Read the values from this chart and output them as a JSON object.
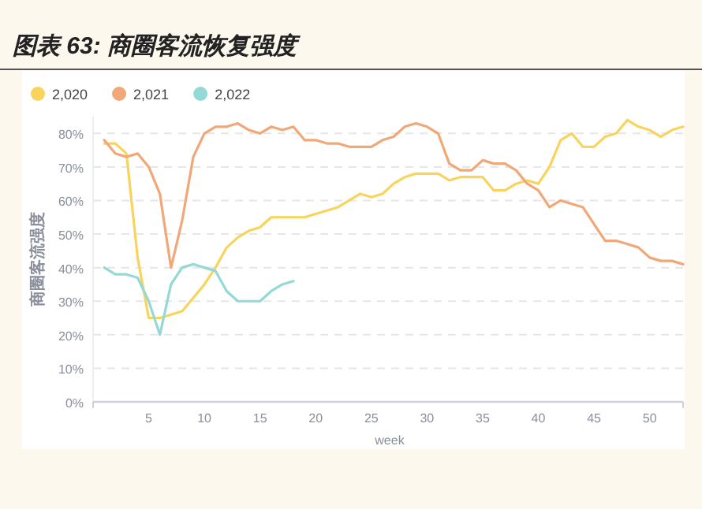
{
  "chart_data": {
    "type": "line",
    "title": "图表 63:  商圈客流恢复强度",
    "xlabel": "week",
    "ylabel": "商圈客流强度",
    "legend": "top left",
    "grid": "y",
    "marker": "none",
    "line_style": "solid",
    "xlim": [
      0,
      53
    ],
    "xticks": [
      5,
      10,
      15,
      20,
      25,
      30,
      35,
      40,
      45,
      50
    ],
    "ylim": [
      0,
      85
    ],
    "yticks": [
      {
        "value": 0,
        "label": "0%"
      },
      {
        "value": 10,
        "label": "10%"
      },
      {
        "value": 20,
        "label": "20%"
      },
      {
        "value": 30,
        "label": "30%"
      },
      {
        "value": 40,
        "label": "40%"
      },
      {
        "value": 50,
        "label": "50%"
      },
      {
        "value": 60,
        "label": "60%"
      },
      {
        "value": 70,
        "label": "70%"
      },
      {
        "value": 80,
        "label": "80%"
      }
    ],
    "series": [
      {
        "name": "2,020",
        "color": "#f9d45c",
        "x": [
          1,
          2,
          3,
          4,
          5,
          6,
          7,
          8,
          9,
          10,
          11,
          12,
          13,
          14,
          15,
          16,
          17,
          18,
          19,
          20,
          21,
          22,
          23,
          24,
          25,
          26,
          27,
          28,
          29,
          30,
          31,
          32,
          33,
          34,
          35,
          36,
          37,
          38,
          39,
          40,
          41,
          42,
          43,
          44,
          45,
          46,
          47,
          48,
          49,
          50,
          51,
          52,
          53
        ],
        "values": [
          77,
          77,
          74,
          43,
          25,
          25,
          26,
          27,
          31,
          35,
          40,
          46,
          49,
          51,
          52,
          55,
          55,
          55,
          55,
          56,
          57,
          58,
          60,
          62,
          61,
          62,
          65,
          67,
          68,
          68,
          68,
          66,
          67,
          67,
          67,
          63,
          63,
          65,
          66,
          65,
          70,
          78,
          80,
          76,
          76,
          79,
          80,
          84,
          82,
          81,
          79,
          81,
          82
        ]
      },
      {
        "name": "2,021",
        "color": "#f0a878",
        "x": [
          1,
          2,
          3,
          4,
          5,
          6,
          7,
          8,
          9,
          10,
          11,
          12,
          13,
          14,
          15,
          16,
          17,
          18,
          19,
          20,
          21,
          22,
          23,
          24,
          25,
          26,
          27,
          28,
          29,
          30,
          31,
          32,
          33,
          34,
          35,
          36,
          37,
          38,
          39,
          40,
          41,
          42,
          43,
          44,
          45,
          46,
          47,
          48,
          49,
          50,
          51,
          52,
          53
        ],
        "values": [
          78,
          74,
          73,
          74,
          70,
          62,
          40,
          54,
          73,
          80,
          82,
          82,
          83,
          81,
          80,
          82,
          81,
          82,
          78,
          78,
          77,
          77,
          76,
          76,
          76,
          78,
          79,
          82,
          83,
          82,
          80,
          71,
          69,
          69,
          72,
          71,
          71,
          69,
          65,
          63,
          58,
          60,
          59,
          58,
          53,
          48,
          48,
          47,
          46,
          43,
          42,
          42,
          41
        ]
      },
      {
        "name": "2,022",
        "color": "#95d9d6",
        "x": [
          1,
          2,
          3,
          4,
          5,
          6,
          7,
          8,
          9,
          10,
          11,
          12,
          13,
          14,
          15,
          16,
          17,
          18
        ],
        "values": [
          40,
          38,
          38,
          37,
          30,
          20,
          35,
          40,
          41,
          40,
          39,
          33,
          30,
          30,
          30,
          33,
          35,
          36
        ]
      }
    ]
  }
}
